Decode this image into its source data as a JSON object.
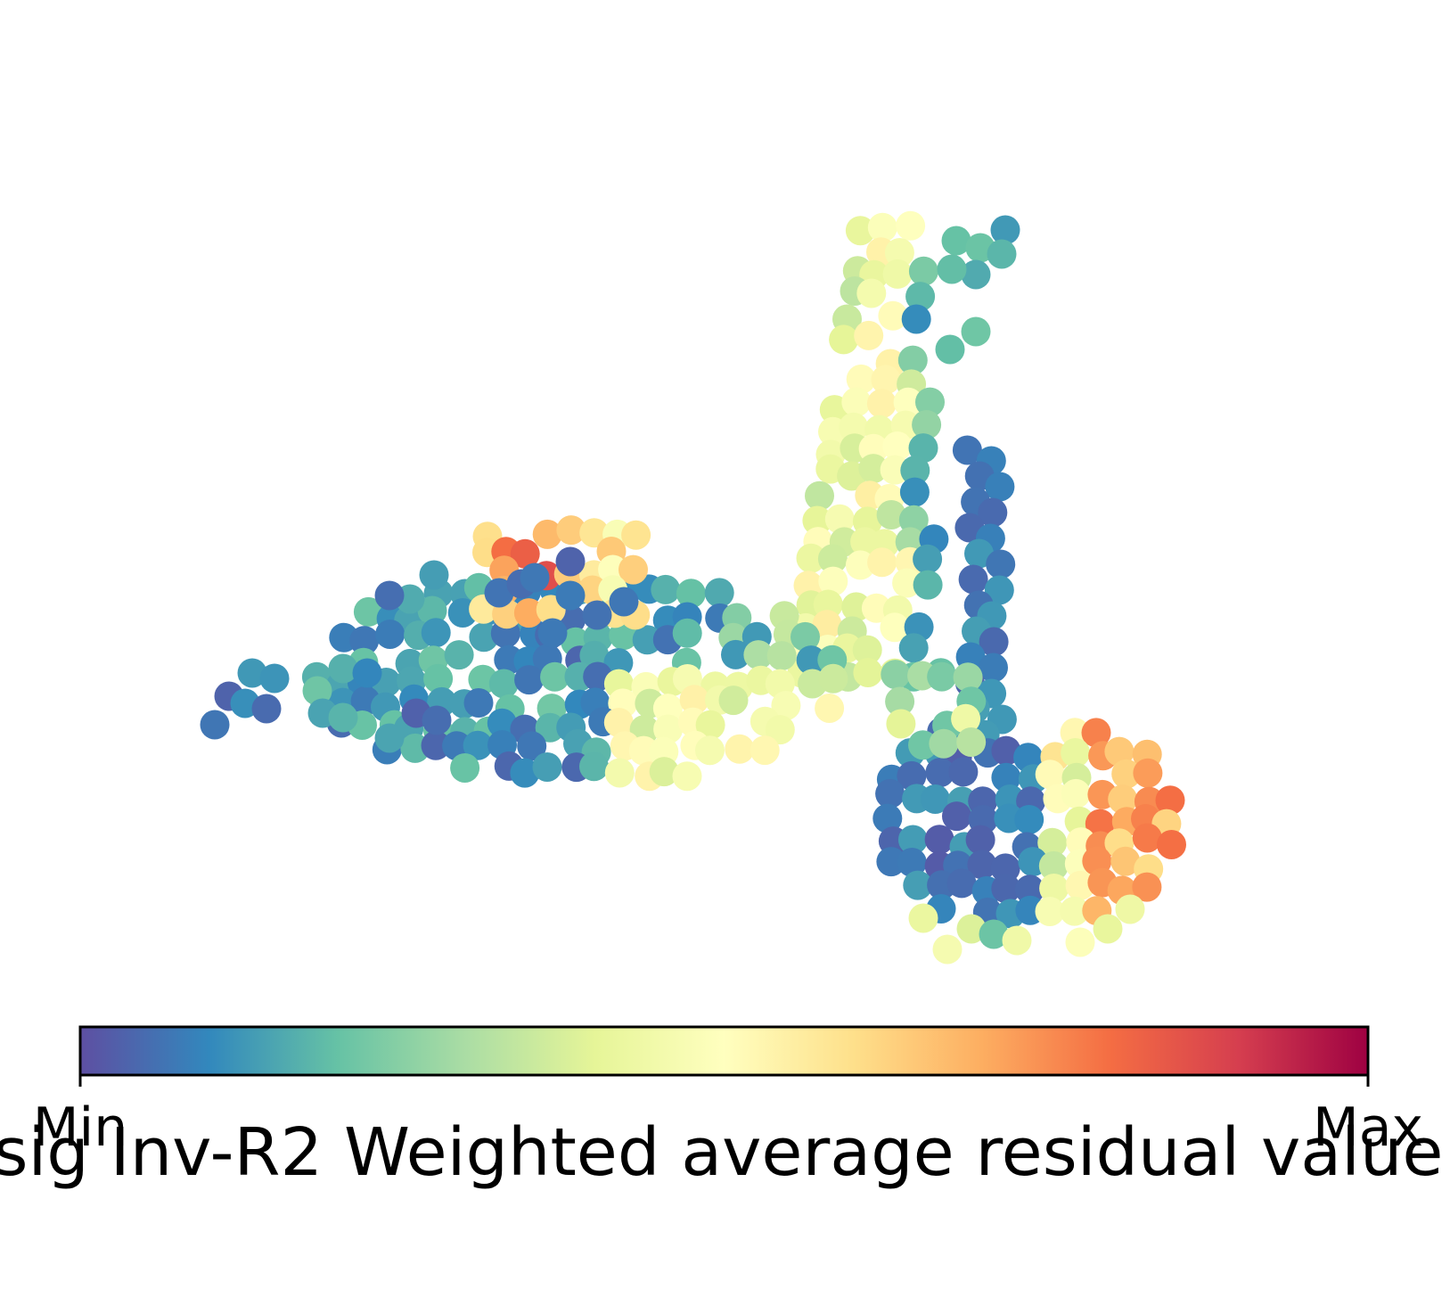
{
  "chart_data": {
    "type": "scatter",
    "colormap": "Spectral_r",
    "axes_visible": false,
    "grid": false,
    "colorbar": {
      "orientation": "horizontal",
      "placement": "bottom",
      "label": "sig Inv-R2 Weighted average residual value",
      "tick_labels": [
        "Min",
        "Max"
      ],
      "range": [
        0,
        1
      ]
    },
    "point_value_range": [
      0,
      1
    ],
    "clusters": [
      {
        "description": "left horizontal lobe, values mostly low with a high-value cluster near its upper middle"
      },
      {
        "description": "vertical upper band, values mostly mid"
      },
      {
        "description": "lower right lobe, low values on the left, high values on the right"
      }
    ]
  },
  "colors": {
    "spectral_stops": [
      "#5e4fa2",
      "#3288bd",
      "#66c2a5",
      "#abdda4",
      "#e6f598",
      "#ffffbf",
      "#fee08b",
      "#fdae61",
      "#f46d43",
      "#d53e4f",
      "#9e0142"
    ]
  }
}
